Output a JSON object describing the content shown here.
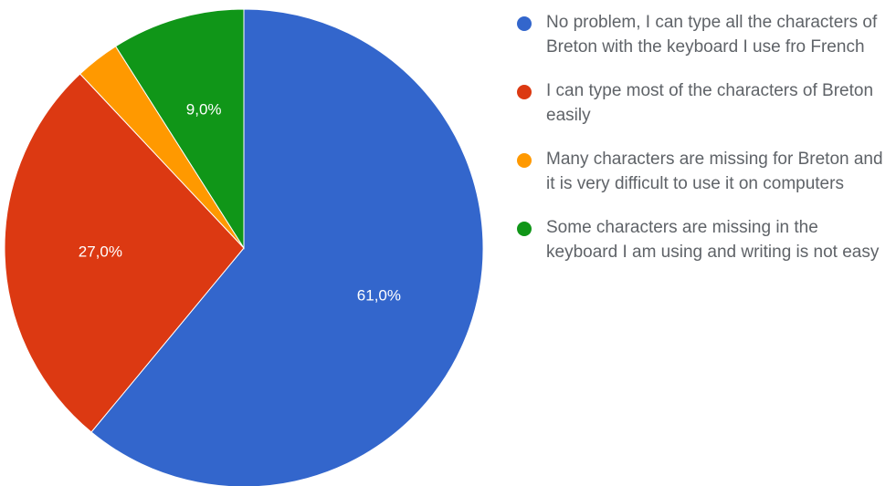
{
  "chart_data": {
    "type": "pie",
    "slices": [
      {
        "label": "No problem, I can type all the characters of Breton with the keyboard I use fro French",
        "value": 61.0,
        "display": "61,0%",
        "color": "#3366cc"
      },
      {
        "label": "I can type most of the characters of Breton easily",
        "value": 27.0,
        "display": "27,0%",
        "color": "#dc3912"
      },
      {
        "label": "Many characters are missing for Breton and it is very difficult to use it on computers",
        "value": 3.0,
        "display": "",
        "color": "#ff9900"
      },
      {
        "label": "Some characters are missing in the keyboard I am using and writing is not easy",
        "value": 9.0,
        "display": "9,0%",
        "color": "#109618"
      }
    ],
    "legend_position": "right"
  }
}
